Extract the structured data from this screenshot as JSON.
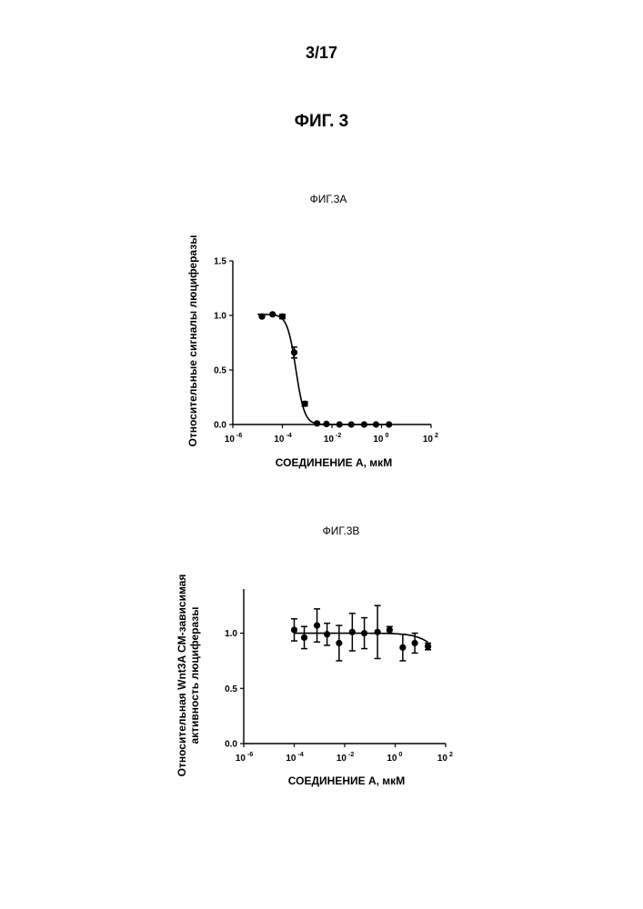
{
  "page": {
    "page_number": "3/17",
    "figure_title": "ФИГ. 3"
  },
  "chart_data": [
    {
      "type": "scatter",
      "title": "ФИГ.3А",
      "xlabel": "СОЕДИНЕНИЕ А, мкМ",
      "ylabel": [
        "Относительные сигналы люциферазы"
      ],
      "xscale": "log",
      "xlim": [
        1e-06,
        100
      ],
      "ylim": [
        0,
        1.5
      ],
      "x_ticks": [
        {
          "base": "10",
          "exp": "-6"
        },
        {
          "base": "10",
          "exp": "-4"
        },
        {
          "base": "10",
          "exp": "-2"
        },
        {
          "base": "10",
          "exp": "0"
        },
        {
          "base": "10",
          "exp": "2"
        }
      ],
      "y_ticks": [
        "0.0",
        "0.5",
        "1.0",
        "1.5"
      ],
      "points": [
        {
          "x": 1.5e-05,
          "y": 0.99,
          "err": 0.01
        },
        {
          "x": 4e-05,
          "y": 1.01,
          "err": 0.01
        },
        {
          "x": 0.0001,
          "y": 0.99,
          "err": 0.02
        },
        {
          "x": 0.0003,
          "y": 0.66,
          "err": 0.05
        },
        {
          "x": 0.0008,
          "y": 0.19,
          "err": 0.02
        },
        {
          "x": 0.0025,
          "y": 0.01,
          "err": 0.005
        },
        {
          "x": 0.006,
          "y": 0.005,
          "err": 0.005
        },
        {
          "x": 0.02,
          "y": 0.0,
          "err": 0.005
        },
        {
          "x": 0.06,
          "y": 0.0,
          "err": 0.005
        },
        {
          "x": 0.2,
          "y": 0.0,
          "err": 0.005
        },
        {
          "x": 0.6,
          "y": 0.0,
          "err": 0.005
        },
        {
          "x": 2,
          "y": 0.0,
          "err": 0.005
        }
      ],
      "fit": {
        "type": "sigmoid",
        "top": 1.01,
        "bottom": 0.0,
        "ic50": 0.00035,
        "hill": 2.5,
        "x_range": [
          1e-05,
          2
        ]
      }
    },
    {
      "type": "scatter",
      "title": "ФИГ.3В",
      "xlabel": "СОЕДИНЕНИЕ А, мкМ",
      "ylabel": [
        "Относительная Wnt3A CM-зависимая",
        "активность люциферазы"
      ],
      "xscale": "log",
      "xlim": [
        1e-06,
        100
      ],
      "ylim": [
        0,
        1.4
      ],
      "x_ticks": [
        {
          "base": "10",
          "exp": "-6"
        },
        {
          "base": "10",
          "exp": "-4"
        },
        {
          "base": "10",
          "exp": "-2"
        },
        {
          "base": "10",
          "exp": "0"
        },
        {
          "base": "10",
          "exp": "2"
        }
      ],
      "y_ticks": [
        "0.0",
        "0.5",
        "1.0"
      ],
      "points": [
        {
          "x": 0.0001,
          "y": 1.03,
          "err": 0.1
        },
        {
          "x": 0.00025,
          "y": 0.96,
          "err": 0.1
        },
        {
          "x": 0.0008,
          "y": 1.07,
          "err": 0.15
        },
        {
          "x": 0.002,
          "y": 0.99,
          "err": 0.1
        },
        {
          "x": 0.006,
          "y": 0.91,
          "err": 0.16
        },
        {
          "x": 0.02,
          "y": 1.01,
          "err": 0.17
        },
        {
          "x": 0.06,
          "y": 1.0,
          "err": 0.14
        },
        {
          "x": 0.2,
          "y": 1.01,
          "err": 0.24
        },
        {
          "x": 0.6,
          "y": 1.03,
          "err": 0.03
        },
        {
          "x": 2,
          "y": 0.87,
          "err": 0.12
        },
        {
          "x": 6,
          "y": 0.91,
          "err": 0.09
        },
        {
          "x": 20,
          "y": 0.88,
          "err": 0.03
        }
      ],
      "fit": {
        "type": "sigmoid",
        "top": 1.0,
        "bottom": 0.5,
        "ic50": 100,
        "hill": 1.0,
        "x_range": [
          0.0001,
          20
        ]
      }
    }
  ]
}
